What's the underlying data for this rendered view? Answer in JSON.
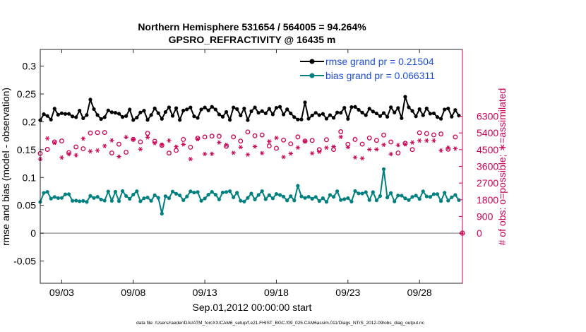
{
  "chart_data": {
    "type": "line",
    "title": "Northern Hemisphere 531654 / 564005 = 94.264%",
    "subtitle": "GPSRO_REFRACTIVITY @ 16435 m",
    "xlabel": "Sep.01,2012 00:00:00 start",
    "ylabel": "rmse and bias (model - observation)",
    "ylabel_right": "# of obs: o=possible; ∗=assimilated",
    "footnote": "data file: /Users/raeder/DAI/ATM_forcXX/CAM6_setup/f.e21.FHIST_BGC.f09_025.CAM6assim.011/Diags_NTrS_2012-09/obs_diag_output.nc",
    "xlim": [
      1.5,
      31.0
    ],
    "ylim": [
      -0.09,
      0.33
    ],
    "ylim_right": [
      -2700,
      9900
    ],
    "x_ticks": [
      3,
      8,
      13,
      18,
      23,
      28
    ],
    "x_tick_labels": [
      "09/03",
      "09/08",
      "09/13",
      "09/18",
      "09/23",
      "09/28"
    ],
    "y_ticks": [
      -0.05,
      0,
      0.05,
      0.1,
      0.15,
      0.2,
      0.25,
      0.3
    ],
    "y_tick_labels": [
      "-0.05",
      "0",
      "0.05",
      "0.1",
      "0.15",
      "0.2",
      "0.25",
      "0.3"
    ],
    "y_ticks_right": [
      0,
      900,
      1800,
      2700,
      3600,
      4500,
      5400,
      6300
    ],
    "y_tick_labels_right": [
      "0",
      "900",
      "1800",
      "2700",
      "3600",
      "4500",
      "5400",
      "6300"
    ],
    "series": [
      {
        "name": "rmse grand pr = 0.21504",
        "color": "#000000",
        "axis": "left",
        "mean": 0.215,
        "amplitude": 0.012,
        "seed": 11,
        "spikes": {
          "5": 0.24,
          "27": 0.245,
          "20": 0.235
        }
      },
      {
        "name": "bias grand pr = 0.066311",
        "color": "#008080",
        "axis": "left",
        "mean": 0.066,
        "amplitude": 0.01,
        "seed": 29,
        "spikes": {
          "10": 0.035,
          "25.5": 0.115,
          "19.5": 0.085
        }
      },
      {
        "name": "possible",
        "color": "#cc0055",
        "axis": "right",
        "marker": "o",
        "mean": 4900,
        "amplitude": 380,
        "seed": 47
      },
      {
        "name": "assimilated",
        "color": "#cc0055",
        "axis": "right",
        "marker": "*",
        "mean": 4600,
        "amplitude": 380,
        "seed": 83
      }
    ],
    "extra_point": {
      "x": 31.0,
      "y_right": 0,
      "marker": "o",
      "color": "#cc0055"
    },
    "zero_line_color": "#a0a0a0",
    "legend_position": "top-right",
    "legend_text_color": "#1f4fd8",
    "right_axis_color": "#cc0055"
  }
}
